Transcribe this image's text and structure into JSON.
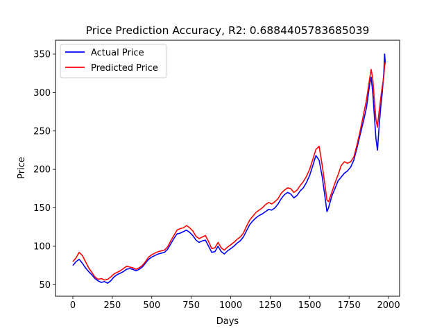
{
  "chart_data": {
    "type": "line",
    "title": "Price Prediction Accuracy, R2: 0.6884405783685039",
    "xlabel": "Days",
    "ylabel": "Price",
    "xlim": [
      -110,
      2070
    ],
    "ylim": [
      35,
      368
    ],
    "x_ticks": [
      0,
      250,
      500,
      750,
      1000,
      1250,
      1500,
      1750,
      2000
    ],
    "y_ticks": [
      50,
      100,
      150,
      200,
      250,
      300,
      350
    ],
    "grid": false,
    "legend_position": "top-left",
    "series": [
      {
        "name": "Actual Price",
        "color": "#0000ff",
        "points": [
          [
            0,
            75
          ],
          [
            20,
            80
          ],
          [
            40,
            83
          ],
          [
            60,
            78
          ],
          [
            80,
            72
          ],
          [
            100,
            67
          ],
          [
            120,
            63
          ],
          [
            140,
            58
          ],
          [
            160,
            55
          ],
          [
            180,
            53
          ],
          [
            200,
            54
          ],
          [
            220,
            52
          ],
          [
            240,
            55
          ],
          [
            260,
            60
          ],
          [
            280,
            63
          ],
          [
            300,
            65
          ],
          [
            320,
            67
          ],
          [
            340,
            70
          ],
          [
            360,
            71
          ],
          [
            380,
            70
          ],
          [
            400,
            68
          ],
          [
            420,
            70
          ],
          [
            440,
            73
          ],
          [
            460,
            78
          ],
          [
            480,
            83
          ],
          [
            500,
            86
          ],
          [
            520,
            88
          ],
          [
            540,
            90
          ],
          [
            560,
            91
          ],
          [
            580,
            92
          ],
          [
            600,
            96
          ],
          [
            620,
            103
          ],
          [
            640,
            110
          ],
          [
            660,
            116
          ],
          [
            680,
            117
          ],
          [
            700,
            119
          ],
          [
            720,
            121
          ],
          [
            740,
            118
          ],
          [
            760,
            114
          ],
          [
            780,
            108
          ],
          [
            800,
            105
          ],
          [
            820,
            107
          ],
          [
            840,
            108
          ],
          [
            860,
            100
          ],
          [
            880,
            92
          ],
          [
            900,
            93
          ],
          [
            920,
            100
          ],
          [
            940,
            93
          ],
          [
            960,
            90
          ],
          [
            980,
            94
          ],
          [
            1000,
            97
          ],
          [
            1020,
            100
          ],
          [
            1040,
            104
          ],
          [
            1060,
            107
          ],
          [
            1080,
            112
          ],
          [
            1100,
            120
          ],
          [
            1120,
            128
          ],
          [
            1140,
            133
          ],
          [
            1160,
            137
          ],
          [
            1180,
            140
          ],
          [
            1200,
            142
          ],
          [
            1220,
            145
          ],
          [
            1240,
            148
          ],
          [
            1260,
            147
          ],
          [
            1280,
            150
          ],
          [
            1300,
            155
          ],
          [
            1320,
            162
          ],
          [
            1340,
            167
          ],
          [
            1360,
            170
          ],
          [
            1380,
            168
          ],
          [
            1400,
            163
          ],
          [
            1420,
            166
          ],
          [
            1440,
            172
          ],
          [
            1460,
            176
          ],
          [
            1480,
            183
          ],
          [
            1500,
            192
          ],
          [
            1520,
            205
          ],
          [
            1540,
            218
          ],
          [
            1560,
            212
          ],
          [
            1580,
            190
          ],
          [
            1600,
            160
          ],
          [
            1610,
            145
          ],
          [
            1620,
            150
          ],
          [
            1640,
            165
          ],
          [
            1660,
            175
          ],
          [
            1680,
            185
          ],
          [
            1700,
            190
          ],
          [
            1720,
            195
          ],
          [
            1740,
            198
          ],
          [
            1760,
            203
          ],
          [
            1780,
            212
          ],
          [
            1800,
            228
          ],
          [
            1820,
            245
          ],
          [
            1840,
            262
          ],
          [
            1860,
            280
          ],
          [
            1880,
            310
          ],
          [
            1890,
            320
          ],
          [
            1900,
            300
          ],
          [
            1910,
            270
          ],
          [
            1920,
            240
          ],
          [
            1930,
            225
          ],
          [
            1940,
            255
          ],
          [
            1950,
            280
          ],
          [
            1960,
            300
          ],
          [
            1970,
            325
          ],
          [
            1975,
            350
          ],
          [
            1980,
            338
          ]
        ]
      },
      {
        "name": "Predicted Price",
        "color": "#ff0000",
        "points": [
          [
            0,
            80
          ],
          [
            20,
            85
          ],
          [
            40,
            92
          ],
          [
            60,
            88
          ],
          [
            80,
            80
          ],
          [
            100,
            72
          ],
          [
            120,
            66
          ],
          [
            140,
            60
          ],
          [
            160,
            57
          ],
          [
            180,
            58
          ],
          [
            200,
            56
          ],
          [
            220,
            57
          ],
          [
            240,
            60
          ],
          [
            260,
            64
          ],
          [
            280,
            66
          ],
          [
            300,
            68
          ],
          [
            320,
            71
          ],
          [
            340,
            74
          ],
          [
            360,
            73
          ],
          [
            380,
            72
          ],
          [
            400,
            70
          ],
          [
            420,
            72
          ],
          [
            440,
            75
          ],
          [
            460,
            80
          ],
          [
            480,
            86
          ],
          [
            500,
            89
          ],
          [
            520,
            91
          ],
          [
            540,
            93
          ],
          [
            560,
            94
          ],
          [
            580,
            95
          ],
          [
            600,
            99
          ],
          [
            620,
            107
          ],
          [
            640,
            114
          ],
          [
            660,
            121
          ],
          [
            680,
            123
          ],
          [
            700,
            124
          ],
          [
            720,
            127
          ],
          [
            740,
            124
          ],
          [
            760,
            120
          ],
          [
            780,
            113
          ],
          [
            800,
            110
          ],
          [
            820,
            112
          ],
          [
            840,
            114
          ],
          [
            860,
            106
          ],
          [
            880,
            97
          ],
          [
            900,
            98
          ],
          [
            920,
            105
          ],
          [
            940,
            98
          ],
          [
            960,
            95
          ],
          [
            980,
            99
          ],
          [
            1000,
            102
          ],
          [
            1020,
            105
          ],
          [
            1040,
            109
          ],
          [
            1060,
            112
          ],
          [
            1080,
            117
          ],
          [
            1100,
            126
          ],
          [
            1120,
            134
          ],
          [
            1140,
            139
          ],
          [
            1160,
            144
          ],
          [
            1180,
            147
          ],
          [
            1200,
            150
          ],
          [
            1220,
            154
          ],
          [
            1240,
            157
          ],
          [
            1260,
            155
          ],
          [
            1280,
            158
          ],
          [
            1300,
            162
          ],
          [
            1320,
            169
          ],
          [
            1340,
            173
          ],
          [
            1360,
            176
          ],
          [
            1380,
            175
          ],
          [
            1400,
            170
          ],
          [
            1420,
            173
          ],
          [
            1440,
            179
          ],
          [
            1460,
            184
          ],
          [
            1480,
            191
          ],
          [
            1500,
            200
          ],
          [
            1520,
            213
          ],
          [
            1540,
            226
          ],
          [
            1560,
            230
          ],
          [
            1580,
            205
          ],
          [
            1600,
            175
          ],
          [
            1610,
            160
          ],
          [
            1620,
            158
          ],
          [
            1640,
            170
          ],
          [
            1660,
            182
          ],
          [
            1680,
            193
          ],
          [
            1700,
            205
          ],
          [
            1720,
            210
          ],
          [
            1740,
            208
          ],
          [
            1760,
            210
          ],
          [
            1780,
            216
          ],
          [
            1800,
            232
          ],
          [
            1820,
            250
          ],
          [
            1840,
            270
          ],
          [
            1860,
            290
          ],
          [
            1880,
            318
          ],
          [
            1890,
            330
          ],
          [
            1900,
            318
          ],
          [
            1910,
            290
          ],
          [
            1920,
            265
          ],
          [
            1930,
            255
          ],
          [
            1940,
            275
          ],
          [
            1950,
            292
          ],
          [
            1960,
            308
          ],
          [
            1970,
            320
          ],
          [
            1975,
            335
          ],
          [
            1980,
            340
          ]
        ]
      }
    ]
  }
}
